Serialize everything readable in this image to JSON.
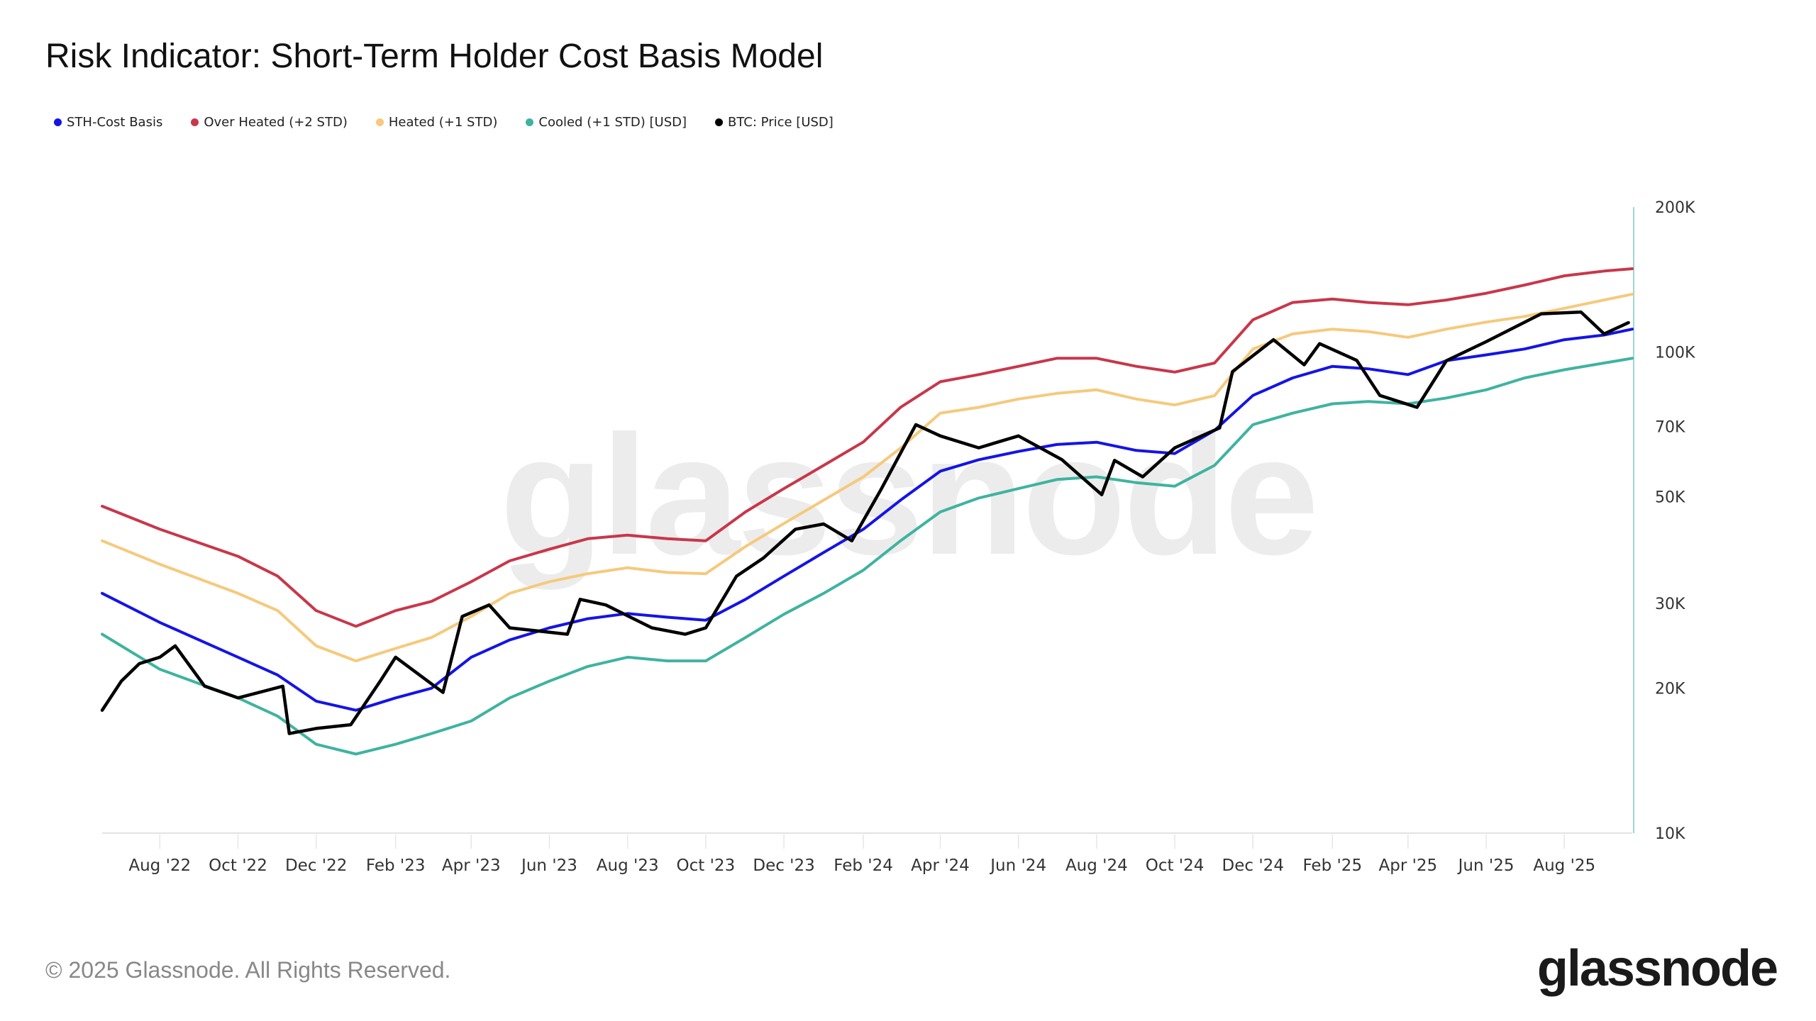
{
  "title": "Risk Indicator: Short-Term Holder Cost Basis Model",
  "legend": [
    {
      "label": "STH-Cost Basis",
      "color": "#1414e6"
    },
    {
      "label": "Over Heated (+2 STD)",
      "color": "#c8374a"
    },
    {
      "label": "Heated (+1 STD)",
      "color": "#f6c97c"
    },
    {
      "label": "Cooled (+1 STD) [USD]",
      "color": "#3fb3a0"
    },
    {
      "label": "BTC: Price [USD]",
      "color": "#000000"
    }
  ],
  "watermark": "glassnode",
  "footer": {
    "copyright": "© 2025 Glassnode. All Rights Reserved.",
    "logo": "glassnode"
  },
  "chart_data": {
    "type": "line",
    "title": "Risk Indicator: Short-Term Holder Cost Basis Model",
    "y_scale": "log",
    "ylim": [
      10000,
      200000
    ],
    "y_axis_position": "right",
    "y_ticks": [
      10000,
      20000,
      30000,
      50000,
      70000,
      100000,
      200000
    ],
    "y_tick_labels": [
      "10K",
      "20K",
      "30K",
      "50K",
      "70K",
      "100K",
      "200K"
    ],
    "xlim": [
      "2022-06-17",
      "2025-09-23"
    ],
    "x_ticks": [
      "2022-08-01",
      "2022-10-01",
      "2022-12-01",
      "2023-02-01",
      "2023-04-01",
      "2023-06-01",
      "2023-08-01",
      "2023-10-01",
      "2023-12-01",
      "2024-02-01",
      "2024-04-01",
      "2024-06-01",
      "2024-08-01",
      "2024-10-01",
      "2024-12-01",
      "2025-02-01",
      "2025-04-01",
      "2025-06-01",
      "2025-08-01"
    ],
    "x_tick_labels": [
      "Aug '22",
      "Oct '22",
      "Dec '22",
      "Feb '23",
      "Apr '23",
      "Jun '23",
      "Aug '23",
      "Oct '23",
      "Dec '23",
      "Feb '24",
      "Apr '24",
      "Jun '24",
      "Aug '24",
      "Oct '24",
      "Dec '24",
      "Feb '25",
      "Apr '25",
      "Jun '25",
      "Aug '25"
    ],
    "grid": false,
    "legend_position": "top-left",
    "band_dates": [
      "2022-06-17",
      "2022-08-01",
      "2022-10-01",
      "2022-11-01",
      "2022-12-01",
      "2023-01-01",
      "2023-02-01",
      "2023-03-01",
      "2023-04-01",
      "2023-05-01",
      "2023-06-01",
      "2023-07-01",
      "2023-08-01",
      "2023-09-01",
      "2023-10-01",
      "2023-11-01",
      "2023-12-01",
      "2024-01-01",
      "2024-02-01",
      "2024-03-01",
      "2024-04-01",
      "2024-05-01",
      "2024-06-01",
      "2024-07-01",
      "2024-08-01",
      "2024-09-01",
      "2024-10-01",
      "2024-11-01",
      "2024-12-01",
      "2025-01-01",
      "2025-02-01",
      "2025-03-01",
      "2025-04-01",
      "2025-05-01",
      "2025-06-01",
      "2025-07-01",
      "2025-08-01",
      "2025-09-01",
      "2025-09-23"
    ],
    "series": [
      {
        "name": "Over Heated (+2 STD)",
        "color": "#c8374a",
        "values": [
          47800,
          42800,
          37600,
          34200,
          29000,
          26900,
          29000,
          30300,
          33300,
          36800,
          38900,
          40900,
          41600,
          40900,
          40500,
          46500,
          52000,
          58100,
          65000,
          76700,
          86700,
          89700,
          93300,
          97000,
          97000,
          93300,
          90800,
          94800,
          116600,
          126700,
          128800,
          126700,
          125300,
          128200,
          132400,
          137700,
          143900,
          147200,
          148900
        ]
      },
      {
        "name": "Heated (+1 STD)",
        "color": "#f6c97c",
        "values": [
          40500,
          36200,
          31500,
          29000,
          24500,
          22800,
          24200,
          25500,
          28200,
          31500,
          33300,
          34600,
          35600,
          34800,
          34600,
          39400,
          44000,
          49200,
          55000,
          63100,
          74600,
          76700,
          79800,
          82000,
          83400,
          79800,
          77600,
          81100,
          101400,
          109000,
          111500,
          110200,
          107200,
          111500,
          115300,
          118500,
          123200,
          128200,
          131800
        ]
      },
      {
        "name": "STH-Cost Basis",
        "color": "#1414e6",
        "values": [
          31500,
          27400,
          23200,
          21300,
          18800,
          18000,
          19100,
          20000,
          23200,
          25200,
          26700,
          27900,
          28600,
          28100,
          27700,
          30600,
          34200,
          38300,
          42800,
          49200,
          56500,
          59700,
          62100,
          64200,
          64900,
          62400,
          61500,
          68700,
          81200,
          88300,
          93300,
          92200,
          89700,
          95900,
          98600,
          101400,
          106000,
          108400,
          111500
        ]
      },
      {
        "name": "Cooled (+1 STD) [USD]",
        "color": "#3fb3a0",
        "values": [
          25900,
          21900,
          19100,
          17500,
          15300,
          14600,
          15300,
          16100,
          17100,
          19100,
          20700,
          22200,
          23200,
          22800,
          22800,
          25500,
          28500,
          31500,
          35200,
          40500,
          46500,
          49700,
          52000,
          54300,
          55000,
          53500,
          52600,
          58100,
          70600,
          74600,
          78000,
          78900,
          78000,
          80200,
          83400,
          88300,
          91800,
          94800,
          97000
        ]
      },
      {
        "name": "BTC: Price [USD]",
        "color": "#000000",
        "dates": [
          "2022-06-17",
          "2022-07-02",
          "2022-07-16",
          "2022-08-01",
          "2022-08-13",
          "2022-09-05",
          "2022-10-01",
          "2022-11-05",
          "2022-11-10",
          "2022-12-01",
          "2022-12-28",
          "2023-01-20",
          "2023-02-01",
          "2023-03-10",
          "2023-03-25",
          "2023-04-15",
          "2023-05-01",
          "2023-06-15",
          "2023-06-25",
          "2023-07-15",
          "2023-08-20",
          "2023-09-15",
          "2023-10-01",
          "2023-10-25",
          "2023-11-15",
          "2023-12-10",
          "2024-01-01",
          "2024-01-23",
          "2024-02-15",
          "2024-03-13",
          "2024-04-01",
          "2024-05-01",
          "2024-06-01",
          "2024-07-05",
          "2024-08-05",
          "2024-08-15",
          "2024-09-06",
          "2024-10-01",
          "2024-11-05",
          "2024-11-15",
          "2024-12-17",
          "2025-01-10",
          "2025-01-22",
          "2025-02-20",
          "2025-03-10",
          "2025-04-08",
          "2025-05-01",
          "2025-06-01",
          "2025-07-14",
          "2025-08-14",
          "2025-09-01",
          "2025-09-20"
        ],
        "values": [
          18000,
          20700,
          22500,
          23200,
          24500,
          20200,
          19100,
          20200,
          16100,
          16500,
          16800,
          20700,
          23200,
          19600,
          28200,
          29800,
          26700,
          25900,
          30600,
          29800,
          26700,
          25900,
          26700,
          34200,
          37300,
          42800,
          43900,
          40500,
          51900,
          70600,
          66900,
          63200,
          66900,
          59700,
          50500,
          59500,
          55000,
          63200,
          69500,
          91000,
          106000,
          94000,
          104000,
          96000,
          81200,
          76700,
          95900,
          105000,
          120000,
          121000,
          109000,
          115000
        ]
      }
    ]
  }
}
